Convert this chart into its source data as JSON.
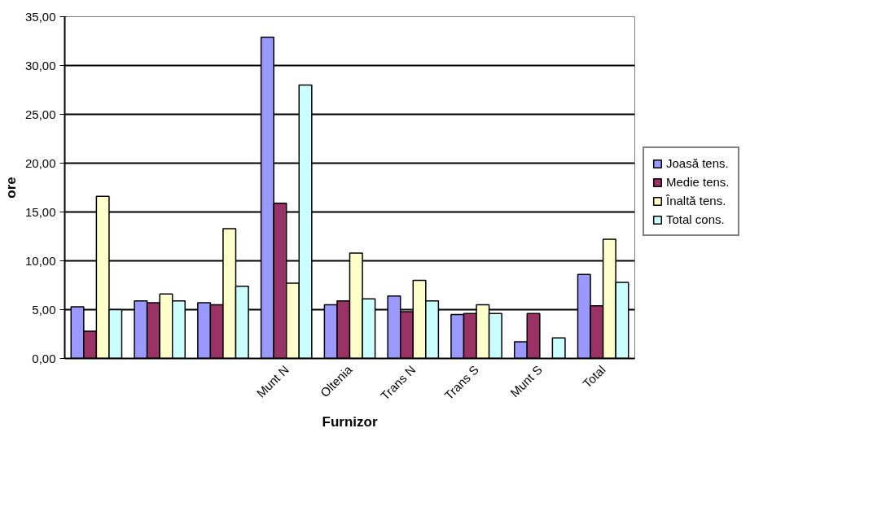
{
  "chart_data": {
    "type": "bar",
    "xlabel": "Furnizor",
    "ylabel": "ore",
    "categories": [
      null,
      null,
      null,
      "Munt N",
      "Oltenia",
      "Trans N",
      "Trans S",
      "Munt S",
      "Total"
    ],
    "series": [
      {
        "name": "Joasă tens.",
        "color": "#9999ff",
        "values": [
          5.3,
          5.9,
          5.7,
          32.9,
          5.5,
          6.4,
          4.5,
          1.7,
          8.6
        ]
      },
      {
        "name": "Medie tens.",
        "color": "#993366",
        "values": [
          2.8,
          5.7,
          5.5,
          15.9,
          5.9,
          4.8,
          4.6,
          4.6,
          5.4
        ]
      },
      {
        "name": "Înaltă tens.",
        "color": "#ffffcc",
        "values": [
          16.6,
          6.6,
          13.3,
          7.7,
          10.8,
          8.0,
          5.5,
          null,
          12.2
        ]
      },
      {
        "name": "Total cons.",
        "color": "#ccffff",
        "values": [
          5.0,
          5.9,
          7.4,
          28.0,
          6.1,
          5.9,
          4.6,
          2.1,
          7.8
        ]
      }
    ],
    "ylim": [
      0,
      35
    ],
    "yticks": [
      {
        "value": 0,
        "label": "0,00"
      },
      {
        "value": 5,
        "label": "5,00"
      },
      {
        "value": 10,
        "label": "10,00"
      },
      {
        "value": 15,
        "label": "15,00"
      },
      {
        "value": 20,
        "label": "20,00"
      },
      {
        "value": 25,
        "label": "25,00"
      },
      {
        "value": 30,
        "label": "30,00"
      },
      {
        "value": 35,
        "label": "35,00"
      }
    ],
    "grid": "y",
    "legend": "right"
  }
}
